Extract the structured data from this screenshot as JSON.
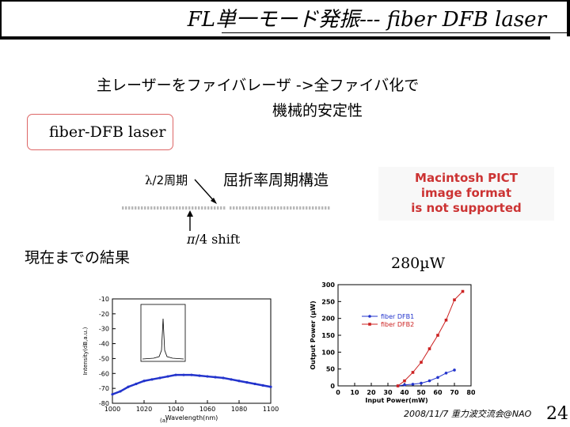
{
  "title": {
    "prefix": "FL",
    "jp": "単一モード発振",
    "suffix": "--- fiber DFB laser"
  },
  "intro": {
    "line1": "主レーザーをファイバレーザ ->全ファイバ化で",
    "line2": "機械的安定性"
  },
  "fiber_label": "fiber-DFB laser",
  "grating": {
    "lambda_symbol": "λ",
    "period_label": "/2周期",
    "index_label": "屈折率周期構造",
    "shift_symbol": "π",
    "shift_label": "/4 shift"
  },
  "pict_placeholder": [
    "Macintosh PICT",
    "image format",
    "is not supported"
  ],
  "results_label": "現在までの結果",
  "power_value": "280µW",
  "colors": {
    "accent": "#d66666",
    "series1": "#2233cc",
    "series2": "#cc2222",
    "pict_text": "#cc3333"
  },
  "chart_data": [
    {
      "type": "line",
      "title": "",
      "xlabel": "Wavelength(nm)",
      "ylabel": "Intensity(dB,a.u.)",
      "xlim": [
        1000,
        1100
      ],
      "ylim": [
        -80,
        -10
      ],
      "x_ticks": [
        1000,
        1020,
        1040,
        1060,
        1080,
        1100
      ],
      "y_ticks": [
        -10,
        -20,
        -30,
        -40,
        -50,
        -60,
        -70,
        -80
      ],
      "series": [
        {
          "x": [
            1000,
            1005,
            1010,
            1015,
            1020,
            1025,
            1030,
            1035,
            1040,
            1045,
            1050,
            1055,
            1060,
            1065,
            1070,
            1075,
            1080,
            1085,
            1090,
            1095,
            1100
          ],
          "y": [
            -74,
            -72,
            -69,
            -67,
            -65,
            -64,
            -63,
            -62,
            -61,
            -61,
            -61,
            -61.5,
            -62,
            -62.5,
            -63,
            -64,
            -65,
            -66,
            -67,
            -68,
            -69
          ]
        }
      ],
      "panel_label": "(a)"
    },
    {
      "type": "line",
      "title": "",
      "xlabel": "Input Power(mW)",
      "ylabel": "Output Power (µW)",
      "xlim": [
        0,
        80
      ],
      "ylim": [
        0,
        300
      ],
      "x_ticks": [
        0,
        10,
        20,
        30,
        40,
        50,
        60,
        70,
        80
      ],
      "y_ticks": [
        0,
        50,
        100,
        150,
        200,
        250,
        300
      ],
      "legend_position": "top-right",
      "series": [
        {
          "name": "fiber DFB1",
          "x": [
            36,
            40,
            45,
            50,
            55,
            60,
            65,
            70
          ],
          "y": [
            0,
            3,
            5,
            8,
            15,
            25,
            38,
            47
          ]
        },
        {
          "name": "fiber DFB2",
          "x": [
            36,
            40,
            45,
            50,
            55,
            60,
            65,
            70,
            75
          ],
          "y": [
            0,
            15,
            40,
            70,
            110,
            150,
            195,
            255,
            280
          ]
        }
      ]
    }
  ],
  "footer": {
    "date": "2008/11/7 重力波交流会@NAO",
    "page": "24"
  }
}
